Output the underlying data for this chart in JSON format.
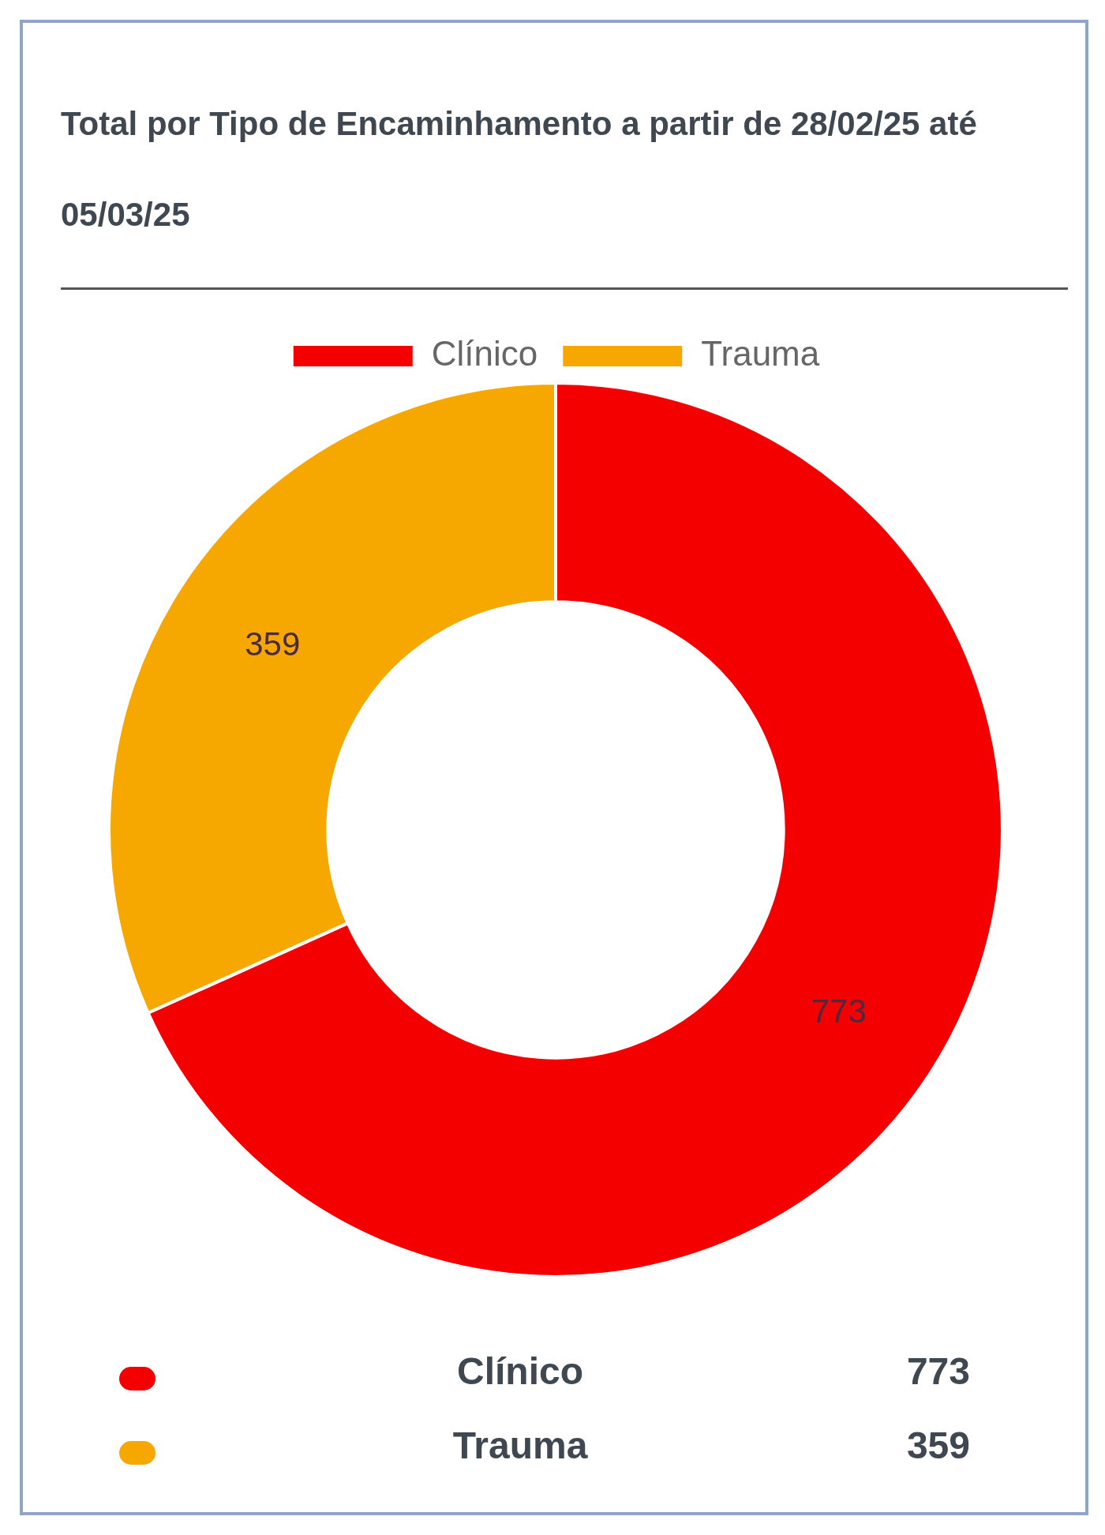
{
  "chart_data": {
    "type": "donut",
    "title": "Total por Tipo de Encaminhamento a partir de 28/02/25 até 05/03/25",
    "categories": [
      "Clínico",
      "Trauma"
    ],
    "values": [
      773,
      359
    ],
    "annotations": [
      "773",
      "359"
    ],
    "colors": [
      "#f50000",
      "#f7a800"
    ],
    "legend": "top",
    "data_labels": true
  }
}
